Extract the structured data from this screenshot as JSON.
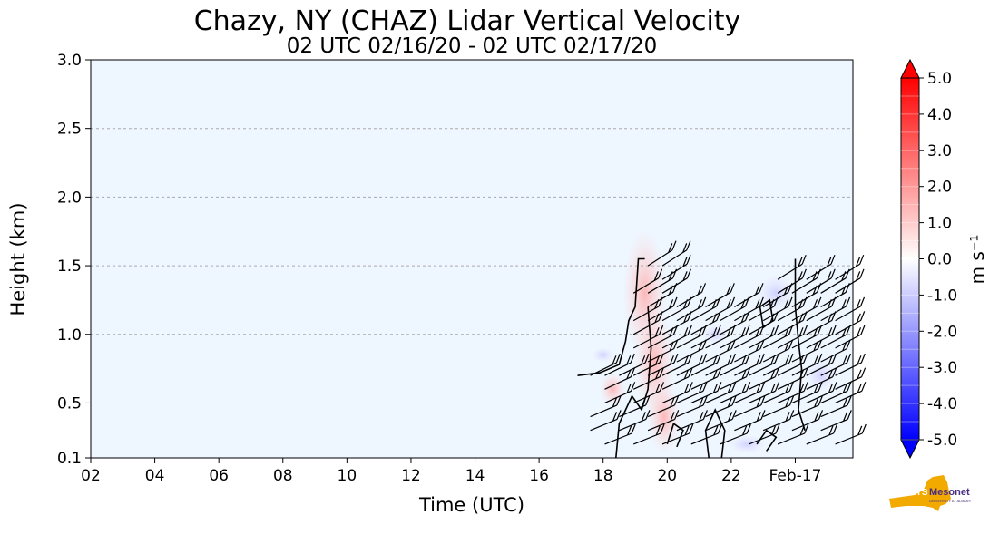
{
  "chart_data": {
    "type": "heatmap",
    "title": "Chazy, NY (CHAZ) Lidar Vertical Velocity",
    "subtitle": "02 UTC 02/16/20 - 02 UTC 02/17/20",
    "xlabel": "Time (UTC)",
    "ylabel": "Height (km)",
    "x_tick_labels": [
      "02",
      "04",
      "06",
      "08",
      "10",
      "12",
      "14",
      "16",
      "18",
      "20",
      "22",
      "Feb-17"
    ],
    "x_tick_hours": [
      2,
      4,
      6,
      8,
      10,
      12,
      14,
      16,
      18,
      20,
      22,
      24
    ],
    "xlim": [
      2,
      25.8
    ],
    "y_tick_labels": [
      "0.1",
      "0.5",
      "1.0",
      "1.5",
      "2.0",
      "2.5",
      "3.0"
    ],
    "y_ticks": [
      0.1,
      0.5,
      1.0,
      1.5,
      2.0,
      2.5,
      3.0
    ],
    "ylim": [
      0.1,
      3.0
    ],
    "grid": "horizontal dashed",
    "background_color": "#eef6ff",
    "colorbar": {
      "label": "m s⁻¹",
      "min": -5.0,
      "max": 5.0,
      "tick_labels": [
        "5.0",
        "4.0",
        "3.0",
        "2.0",
        "1.0",
        "0.0",
        "-1.0",
        "-2.0",
        "-3.0",
        "-4.0",
        "-5.0"
      ],
      "ticks": [
        5,
        4,
        3,
        2,
        1,
        0,
        -1,
        -2,
        -3,
        -4,
        -5
      ],
      "extend": "both",
      "colormap": "bwr"
    },
    "data_coverage_hours": [
      17.2,
      25.8
    ],
    "features": "wind barbs and contour lines over weak vertical velocity field (mostly near 0 m/s, slight positive near 19-20 UTC)"
  },
  "logo": {
    "label": "Mesonet",
    "name": "NYS Mesonet",
    "sub": "UNIVERSITY AT ALBANY"
  }
}
